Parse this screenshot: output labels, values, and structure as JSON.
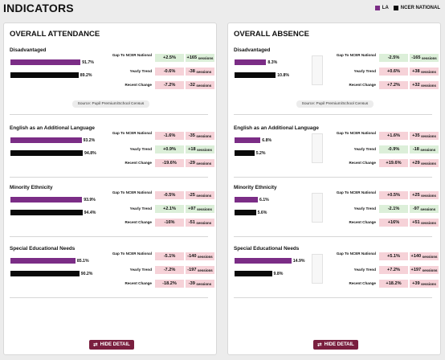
{
  "page_title": "INDICATORS",
  "legend": [
    {
      "label": "LA",
      "color": "#7b2d86"
    },
    {
      "label": "NCER NATIONAL",
      "color": "#0a0a0a"
    }
  ],
  "row_labels": {
    "gap": "Gap To NCER National",
    "trend": "Yearly Trend",
    "recent": "Recent Change"
  },
  "units": "sessions",
  "hide_label": "HIDE DETAIL",
  "panels": [
    {
      "title": "OVERALL ATTENDANCE",
      "source": "Source: Pupil Premium/School Census",
      "sections": [
        {
          "title": "Disadvantaged",
          "la": 91.7,
          "la_label": "91.7%",
          "nat": 89.2,
          "nat_label": "89.2%",
          "gap": "+2.5%",
          "gap_s": "+165",
          "trend": "-0.6%",
          "trend_s": "-38",
          "recent": "-7.2%",
          "recent_s": "-32",
          "colors": [
            "green",
            "green",
            "red",
            "red",
            "red",
            "red"
          ]
        },
        {
          "title": "English as an Additional Language",
          "la": 93.2,
          "la_label": "93.2%",
          "nat": 94.8,
          "nat_label": "94.8%",
          "gap": "-1.6%",
          "gap_s": "-35",
          "trend": "+0.9%",
          "trend_s": "+18",
          "recent": "-19.6%",
          "recent_s": "-29",
          "colors": [
            "red",
            "red",
            "green",
            "green",
            "red",
            "red"
          ]
        },
        {
          "title": "Minority Ethnicity",
          "la": 93.9,
          "la_label": "93.9%",
          "nat": 94.4,
          "nat_label": "94.4%",
          "gap": "-0.5%",
          "gap_s": "-25",
          "trend": "+2.1%",
          "trend_s": "+97",
          "recent": "-16%",
          "recent_s": "-51",
          "colors": [
            "red",
            "red",
            "green",
            "green",
            "red",
            "red"
          ]
        },
        {
          "title": "Special Educational Needs",
          "la": 85.1,
          "la_label": "85.1%",
          "nat": 90.2,
          "nat_label": "90.2%",
          "gap": "-5.1%",
          "gap_s": "-140",
          "trend": "-7.2%",
          "trend_s": "-197",
          "recent": "-18.2%",
          "recent_s": "-39",
          "colors": [
            "red",
            "red",
            "red",
            "red",
            "red",
            "red"
          ]
        }
      ]
    },
    {
      "title": "OVERALL ABSENCE",
      "source": "Source: Pupil Premium/School Census",
      "sections": [
        {
          "title": "Disadvantaged",
          "la": 8.3,
          "la_label": "8.3%",
          "nat": 10.8,
          "nat_label": "10.8%",
          "gap": "-2.5%",
          "gap_s": "-165",
          "trend": "+0.6%",
          "trend_s": "+38",
          "recent": "+7.2%",
          "recent_s": "+32",
          "colors": [
            "green",
            "green",
            "red",
            "red",
            "red",
            "red"
          ]
        },
        {
          "title": "English as an Additional Language",
          "la": 6.8,
          "la_label": "6.8%",
          "nat": 5.2,
          "nat_label": "5.2%",
          "gap": "+1.6%",
          "gap_s": "+35",
          "trend": "-0.9%",
          "trend_s": "-18",
          "recent": "+19.6%",
          "recent_s": "+29",
          "colors": [
            "red",
            "red",
            "green",
            "green",
            "red",
            "red"
          ]
        },
        {
          "title": "Minority Ethnicity",
          "la": 6.1,
          "la_label": "6.1%",
          "nat": 5.6,
          "nat_label": "5.6%",
          "gap": "+0.5%",
          "gap_s": "+25",
          "trend": "-2.1%",
          "trend_s": "-97",
          "recent": "+16%",
          "recent_s": "+51",
          "colors": [
            "red",
            "red",
            "green",
            "green",
            "red",
            "red"
          ]
        },
        {
          "title": "Special Educational Needs",
          "la": 14.9,
          "la_label": "14.9%",
          "nat": 9.8,
          "nat_label": "9.8%",
          "gap": "+5.1%",
          "gap_s": "+140",
          "trend": "+7.2%",
          "trend_s": "+197",
          "recent": "+18.2%",
          "recent_s": "+39",
          "colors": [
            "red",
            "red",
            "red",
            "red",
            "red",
            "red"
          ]
        }
      ]
    }
  ]
}
